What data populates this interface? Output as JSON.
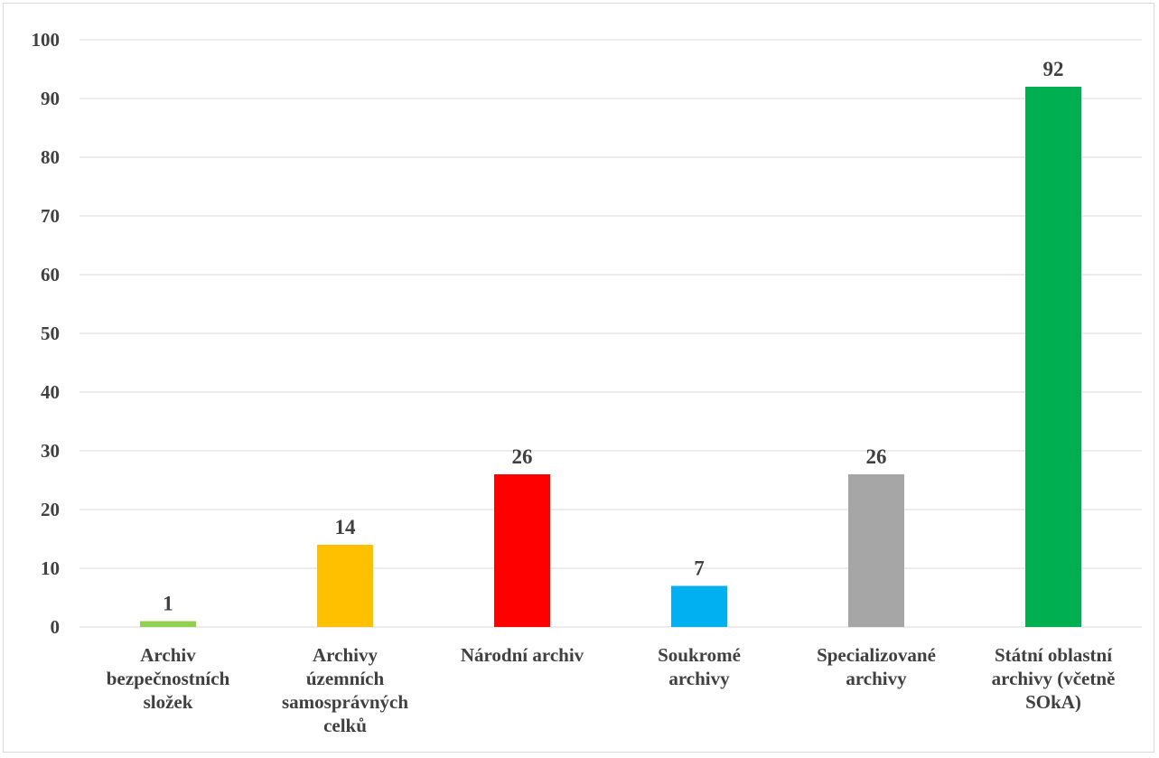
{
  "chart_data": {
    "type": "bar",
    "title": "",
    "xlabel": "",
    "ylabel": "",
    "categories": [
      [
        "Archiv",
        "bezpečnostních",
        "složek"
      ],
      [
        "Archivy",
        "územních",
        "samosprávných",
        "celků"
      ],
      [
        "Národní archiv"
      ],
      [
        "Soukromé",
        "archivy"
      ],
      [
        "Specializované",
        "archivy"
      ],
      [
        "Státní oblastní",
        "archivy (včetně",
        "SOkA)"
      ]
    ],
    "values": [
      1,
      14,
      26,
      7,
      26,
      92
    ],
    "data_labels": [
      "1",
      "14",
      "26",
      "7",
      "26",
      "92"
    ],
    "colors": [
      "#92d050",
      "#ffc000",
      "#ff0000",
      "#00b0f0",
      "#a6a6a6",
      "#00b050"
    ],
    "ylim": [
      0,
      100
    ],
    "yticks": [
      0,
      10,
      20,
      30,
      40,
      50,
      60,
      70,
      80,
      90,
      100
    ],
    "grid": true,
    "legend": "none"
  }
}
